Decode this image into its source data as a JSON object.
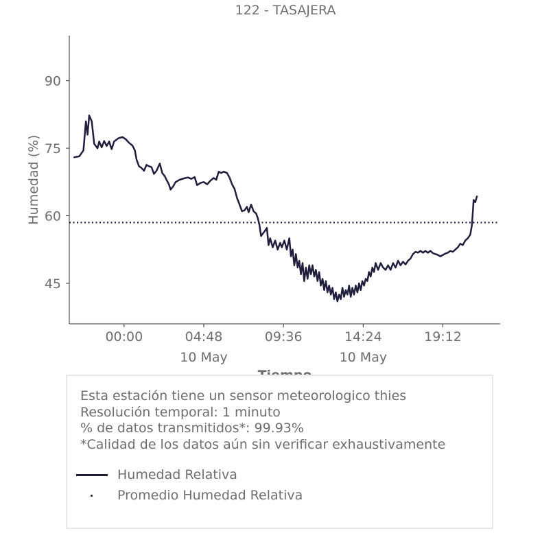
{
  "chart_data": {
    "type": "line",
    "title": "122 - TASAJERA",
    "xlabel": "Tiempo",
    "ylabel": "Humedad (%)",
    "ylim": [
      36,
      100
    ],
    "y_ticks": [
      45,
      60,
      75,
      90
    ],
    "xlim_hours": [
      -3.3,
      22.65
    ],
    "x_ticks": [
      {
        "label": "00:00",
        "sublabel": "",
        "hour": 0
      },
      {
        "label": "04:48",
        "sublabel": "10 May",
        "hour": 4.8
      },
      {
        "label": "09:36",
        "sublabel": "",
        "hour": 9.6
      },
      {
        "label": "14:24",
        "sublabel": "10 May",
        "hour": 14.4
      },
      {
        "label": "19:12",
        "sublabel": "",
        "hour": 19.2
      }
    ],
    "grid": false,
    "series": [
      {
        "name": "Humedad Relativa",
        "color": "#1f1f3d",
        "style": "solid",
        "points": [
          [
            -3.0,
            73.0
          ],
          [
            -2.7,
            73.2
          ],
          [
            -2.45,
            74.5
          ],
          [
            -2.3,
            81.0
          ],
          [
            -2.2,
            78.0
          ],
          [
            -2.1,
            82.3
          ],
          [
            -1.95,
            81.0
          ],
          [
            -1.8,
            76.0
          ],
          [
            -1.6,
            75.0
          ],
          [
            -1.5,
            76.5
          ],
          [
            -1.35,
            75.2
          ],
          [
            -1.2,
            76.6
          ],
          [
            -1.05,
            75.5
          ],
          [
            -0.9,
            76.5
          ],
          [
            -0.75,
            74.8
          ],
          [
            -0.6,
            76.5
          ],
          [
            -0.35,
            77.2
          ],
          [
            -0.1,
            77.5
          ],
          [
            0.1,
            77.0
          ],
          [
            0.3,
            76.2
          ],
          [
            0.5,
            75.6
          ],
          [
            0.65,
            74.5
          ],
          [
            0.75,
            72.5
          ],
          [
            0.9,
            71.0
          ],
          [
            1.05,
            70.6
          ],
          [
            1.2,
            70.0
          ],
          [
            1.35,
            71.3
          ],
          [
            1.5,
            71.0
          ],
          [
            1.65,
            70.8
          ],
          [
            1.8,
            69.3
          ],
          [
            1.95,
            70.0
          ],
          [
            2.15,
            71.6
          ],
          [
            2.3,
            69.5
          ],
          [
            2.45,
            68.8
          ],
          [
            2.55,
            68.0
          ],
          [
            2.7,
            67.0
          ],
          [
            2.8,
            65.8
          ],
          [
            2.95,
            66.5
          ],
          [
            3.1,
            67.5
          ],
          [
            3.35,
            68.0
          ],
          [
            3.6,
            68.3
          ],
          [
            3.85,
            68.5
          ],
          [
            4.05,
            68.2
          ],
          [
            4.25,
            68.6
          ],
          [
            4.4,
            66.8
          ],
          [
            4.6,
            67.3
          ],
          [
            4.8,
            67.5
          ],
          [
            5.0,
            67.0
          ],
          [
            5.2,
            67.8
          ],
          [
            5.4,
            68.4
          ],
          [
            5.55,
            68.0
          ],
          [
            5.7,
            69.8
          ],
          [
            5.85,
            69.5
          ],
          [
            6.0,
            69.8
          ],
          [
            6.2,
            69.5
          ],
          [
            6.35,
            68.5
          ],
          [
            6.5,
            67.0
          ],
          [
            6.65,
            66.0
          ],
          [
            6.8,
            64.0
          ],
          [
            6.95,
            62.5
          ],
          [
            7.1,
            61.0
          ],
          [
            7.25,
            61.2
          ],
          [
            7.4,
            62.0
          ],
          [
            7.5,
            60.8
          ],
          [
            7.65,
            62.5
          ],
          [
            7.8,
            61.0
          ],
          [
            7.95,
            60.5
          ],
          [
            8.05,
            59.5
          ],
          [
            8.15,
            58.0
          ],
          [
            8.25,
            55.5
          ],
          [
            8.35,
            56.0
          ],
          [
            8.45,
            56.5
          ],
          [
            8.6,
            57.3
          ],
          [
            8.7,
            53.5
          ],
          [
            8.8,
            55.0
          ],
          [
            8.95,
            53.0
          ],
          [
            9.1,
            54.5
          ],
          [
            9.25,
            52.5
          ],
          [
            9.4,
            54.0
          ],
          [
            9.5,
            53.0
          ],
          [
            9.65,
            54.5
          ],
          [
            9.8,
            52.5
          ],
          [
            9.95,
            55.0
          ],
          [
            10.05,
            51.0
          ],
          [
            10.15,
            52.5
          ],
          [
            10.25,
            49.0
          ],
          [
            10.35,
            51.5
          ],
          [
            10.45,
            48.5
          ],
          [
            10.55,
            50.0
          ],
          [
            10.65,
            47.0
          ],
          [
            10.75,
            49.5
          ],
          [
            10.85,
            45.5
          ],
          [
            10.95,
            48.5
          ],
          [
            11.05,
            46.0
          ],
          [
            11.15,
            49.0
          ],
          [
            11.25,
            47.0
          ],
          [
            11.35,
            49.0
          ],
          [
            11.45,
            46.5
          ],
          [
            11.55,
            48.0
          ],
          [
            11.65,
            45.5
          ],
          [
            11.75,
            47.5
          ],
          [
            11.85,
            44.5
          ],
          [
            11.95,
            46.0
          ],
          [
            12.05,
            43.5
          ],
          [
            12.15,
            45.5
          ],
          [
            12.25,
            43.0
          ],
          [
            12.35,
            44.5
          ],
          [
            12.45,
            42.5
          ],
          [
            12.55,
            44.0
          ],
          [
            12.65,
            41.5
          ],
          [
            12.75,
            43.0
          ],
          [
            12.85,
            41.0
          ],
          [
            12.95,
            42.5
          ],
          [
            13.05,
            41.5
          ],
          [
            13.15,
            44.0
          ],
          [
            13.25,
            42.0
          ],
          [
            13.35,
            43.5
          ],
          [
            13.45,
            42.5
          ],
          [
            13.55,
            44.5
          ],
          [
            13.65,
            42.0
          ],
          [
            13.75,
            44.0
          ],
          [
            13.85,
            42.5
          ],
          [
            13.95,
            44.5
          ],
          [
            14.05,
            43.0
          ],
          [
            14.15,
            45.0
          ],
          [
            14.25,
            43.5
          ],
          [
            14.35,
            45.5
          ],
          [
            14.45,
            44.5
          ],
          [
            14.55,
            46.0
          ],
          [
            14.65,
            45.5
          ],
          [
            14.75,
            47.5
          ],
          [
            14.85,
            46.5
          ],
          [
            14.95,
            48.5
          ],
          [
            15.05,
            47.5
          ],
          [
            15.15,
            49.5
          ],
          [
            15.3,
            48.0
          ],
          [
            15.45,
            49.5
          ],
          [
            15.6,
            48.5
          ],
          [
            15.75,
            48.0
          ],
          [
            15.9,
            49.0
          ],
          [
            16.05,
            48.0
          ],
          [
            16.2,
            49.5
          ],
          [
            16.35,
            48.5
          ],
          [
            16.5,
            50.0
          ],
          [
            16.65,
            49.0
          ],
          [
            16.8,
            49.8
          ],
          [
            16.95,
            49.2
          ],
          [
            17.1,
            50.0
          ],
          [
            17.25,
            50.5
          ],
          [
            17.4,
            51.5
          ],
          [
            17.55,
            52.0
          ],
          [
            17.7,
            51.8
          ],
          [
            17.85,
            52.2
          ],
          [
            18.0,
            51.8
          ],
          [
            18.15,
            52.2
          ],
          [
            18.3,
            51.8
          ],
          [
            18.45,
            52.2
          ],
          [
            18.6,
            51.7
          ],
          [
            18.75,
            51.5
          ],
          [
            18.9,
            51.3
          ],
          [
            19.05,
            51.0
          ],
          [
            19.2,
            51.3
          ],
          [
            19.35,
            51.6
          ],
          [
            19.5,
            51.8
          ],
          [
            19.65,
            52.2
          ],
          [
            19.8,
            52.0
          ],
          [
            19.95,
            52.5
          ],
          [
            20.1,
            53.0
          ],
          [
            20.25,
            53.8
          ],
          [
            20.4,
            53.5
          ],
          [
            20.55,
            54.5
          ],
          [
            20.7,
            55.0
          ],
          [
            20.85,
            55.8
          ],
          [
            20.95,
            58.0
          ],
          [
            21.05,
            63.5
          ],
          [
            21.15,
            63.0
          ],
          [
            21.25,
            64.3
          ]
        ]
      },
      {
        "name": "Promedio Humedad Relativa",
        "color": "#1f1f3d",
        "style": "dotted",
        "value": 58.5
      }
    ]
  },
  "info": {
    "line1": "Esta estación tiene un sensor meteorologico thies",
    "line2": "Resolución temporal: 1 minuto",
    "line3": "% de datos transmitidos*: 99.93%",
    "line4": "*Calidad de los datos aún sin verificar exhaustivamente"
  },
  "legend": [
    {
      "label": "Humedad Relativa"
    },
    {
      "label": "Promedio Humedad Relativa"
    }
  ]
}
